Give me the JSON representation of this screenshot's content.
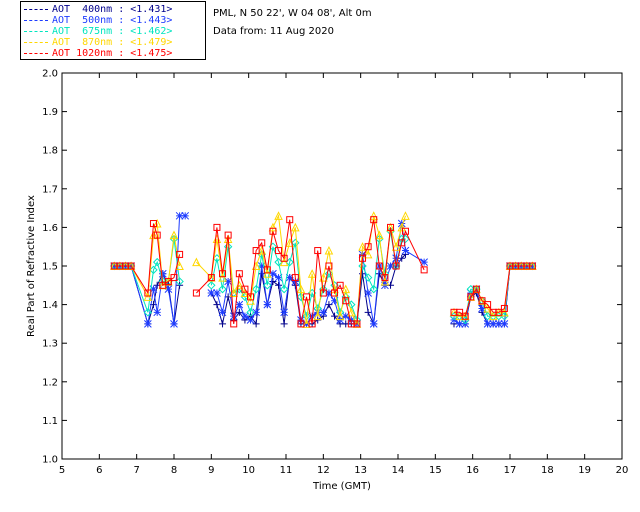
{
  "header": {
    "location": "PML, N 50 22', W 04 08', Alt 0m",
    "date": "Data from: 11 Aug 2020"
  },
  "legend": [
    {
      "label": "AOT  400nm : <1.431>",
      "color": "#00008b"
    },
    {
      "label": "AOT  500nm : <1.443>",
      "color": "#1e3cff"
    },
    {
      "label": "AOT  675nm : <1.462>",
      "color": "#00e5c0"
    },
    {
      "label": "AOT  870nm : <1.479>",
      "color": "#ffd700"
    },
    {
      "label": "AOT 1020nm : <1.475>",
      "color": "#ff0000"
    }
  ],
  "chart_data": {
    "type": "scatter",
    "xlabel": "Time (GMT)",
    "ylabel": "Real Part of Refractive Index",
    "xlim": [
      5,
      20
    ],
    "ylim": [
      1.0,
      2.0
    ],
    "xticks": [
      "5",
      "6",
      "7",
      "8",
      "9",
      "10",
      "11",
      "12",
      "13",
      "14",
      "15",
      "16",
      "17",
      "18",
      "19",
      "20"
    ],
    "yticks": [
      "1.0",
      "1.1",
      "1.2",
      "1.3",
      "1.4",
      "1.5",
      "1.6",
      "1.7",
      "1.8",
      "1.9",
      "2.0"
    ],
    "x": [
      6.4,
      6.55,
      6.7,
      6.85,
      7.3,
      7.45,
      7.55,
      7.7,
      7.85,
      8.0,
      8.15,
      8.3,
      8.6,
      9.0,
      9.15,
      9.3,
      9.45,
      9.6,
      9.75,
      9.9,
      10.05,
      10.2,
      10.35,
      10.5,
      10.65,
      10.8,
      10.95,
      11.1,
      11.25,
      11.4,
      11.55,
      11.7,
      11.85,
      12.0,
      12.15,
      12.3,
      12.45,
      12.6,
      12.75,
      12.9,
      13.05,
      13.2,
      13.35,
      13.5,
      13.65,
      13.8,
      13.95,
      14.1,
      14.2,
      14.7,
      15.5,
      15.65,
      15.8,
      15.95,
      16.1,
      16.25,
      16.4,
      16.55,
      16.7,
      16.85,
      17.0,
      17.15,
      17.3,
      17.45,
      17.6
    ],
    "series": [
      {
        "name": "AOT  400nm : <1.431>",
        "marker": "plus",
        "color": "#00008b",
        "values": [
          1.5,
          1.5,
          1.5,
          1.5,
          1.35,
          1.4,
          1.45,
          1.48,
          1.45,
          1.35,
          1.45,
          null,
          null,
          1.43,
          1.4,
          1.35,
          1.42,
          1.36,
          1.38,
          1.36,
          1.37,
          1.35,
          1.48,
          1.4,
          1.46,
          1.45,
          1.35,
          1.47,
          1.45,
          1.35,
          1.35,
          1.35,
          1.36,
          1.37,
          1.4,
          1.37,
          1.35,
          1.35,
          1.35,
          1.35,
          1.48,
          1.38,
          1.35,
          1.48,
          1.45,
          1.45,
          1.5,
          1.52,
          1.53,
          null,
          1.35,
          1.35,
          1.35,
          1.42,
          1.43,
          1.38,
          1.35,
          1.35,
          1.35,
          1.35,
          1.5,
          1.5,
          1.5,
          1.5,
          1.5
        ]
      },
      {
        "name": "AOT  500nm : <1.443>",
        "marker": "asterisk",
        "color": "#1e3cff",
        "values": [
          1.5,
          1.5,
          1.5,
          1.5,
          1.35,
          1.44,
          1.38,
          1.48,
          1.44,
          1.35,
          1.63,
          1.63,
          null,
          1.43,
          1.43,
          1.38,
          1.46,
          1.37,
          1.4,
          1.37,
          1.36,
          1.38,
          1.5,
          1.4,
          1.48,
          1.47,
          1.38,
          1.47,
          1.46,
          1.36,
          1.35,
          1.37,
          1.38,
          1.38,
          1.43,
          1.41,
          1.36,
          1.37,
          1.36,
          1.35,
          1.53,
          1.43,
          1.35,
          1.5,
          1.45,
          1.5,
          1.52,
          1.61,
          1.54,
          1.51,
          1.36,
          1.35,
          1.35,
          1.43,
          1.44,
          1.39,
          1.35,
          1.35,
          1.35,
          1.35,
          1.5,
          1.5,
          1.5,
          1.5,
          1.5
        ]
      },
      {
        "name": "AOT  675nm : <1.462>",
        "marker": "diamond",
        "color": "#00e5c0",
        "values": [
          1.5,
          1.5,
          1.5,
          1.5,
          1.38,
          1.49,
          1.51,
          1.46,
          1.46,
          1.57,
          1.46,
          null,
          null,
          1.45,
          1.52,
          1.44,
          1.55,
          1.43,
          1.44,
          1.42,
          1.38,
          1.44,
          1.53,
          1.45,
          1.55,
          1.51,
          1.44,
          1.51,
          1.56,
          1.42,
          1.37,
          1.43,
          1.39,
          1.44,
          1.48,
          1.45,
          1.38,
          1.42,
          1.4,
          1.36,
          1.5,
          1.47,
          1.44,
          1.57,
          1.48,
          1.59,
          1.5,
          1.57,
          1.57,
          null,
          1.37,
          1.37,
          1.36,
          1.44,
          1.44,
          1.41,
          1.37,
          1.37,
          1.37,
          1.37,
          1.5,
          1.5,
          1.5,
          1.5,
          1.5
        ]
      },
      {
        "name": "AOT  870nm : <1.479>",
        "marker": "triangle",
        "color": "#ffd700",
        "values": [
          1.5,
          1.5,
          1.5,
          1.5,
          1.42,
          1.58,
          1.61,
          1.45,
          1.46,
          1.58,
          1.5,
          null,
          1.51,
          1.47,
          1.57,
          1.47,
          1.57,
          1.43,
          1.45,
          1.43,
          1.41,
          1.5,
          1.54,
          1.48,
          1.6,
          1.63,
          1.51,
          1.56,
          1.6,
          1.44,
          1.35,
          1.48,
          1.37,
          1.47,
          1.54,
          1.44,
          1.37,
          1.44,
          1.38,
          1.35,
          1.55,
          1.53,
          1.63,
          1.58,
          1.46,
          1.6,
          1.55,
          1.6,
          1.63,
          null,
          1.38,
          1.37,
          1.37,
          1.42,
          1.44,
          1.41,
          1.39,
          1.37,
          1.38,
          1.38,
          1.5,
          1.5,
          1.5,
          1.5,
          1.5
        ]
      },
      {
        "name": "AOT 1020nm : <1.475>",
        "marker": "square",
        "color": "#ff0000",
        "values": [
          1.5,
          1.5,
          1.5,
          1.5,
          1.43,
          1.61,
          1.58,
          1.45,
          1.46,
          1.47,
          1.53,
          null,
          1.43,
          1.47,
          1.6,
          1.48,
          1.58,
          1.35,
          1.48,
          1.44,
          1.42,
          1.54,
          1.56,
          1.49,
          1.59,
          1.54,
          1.52,
          1.62,
          1.47,
          1.35,
          1.42,
          1.35,
          1.54,
          1.43,
          1.5,
          1.43,
          1.45,
          1.41,
          1.35,
          1.35,
          1.52,
          1.55,
          1.62,
          1.5,
          1.47,
          1.6,
          1.5,
          1.56,
          1.59,
          1.49,
          1.38,
          1.38,
          1.37,
          1.42,
          1.44,
          1.41,
          1.4,
          1.38,
          1.38,
          1.39,
          1.5,
          1.5,
          1.5,
          1.5,
          1.5
        ]
      }
    ]
  }
}
